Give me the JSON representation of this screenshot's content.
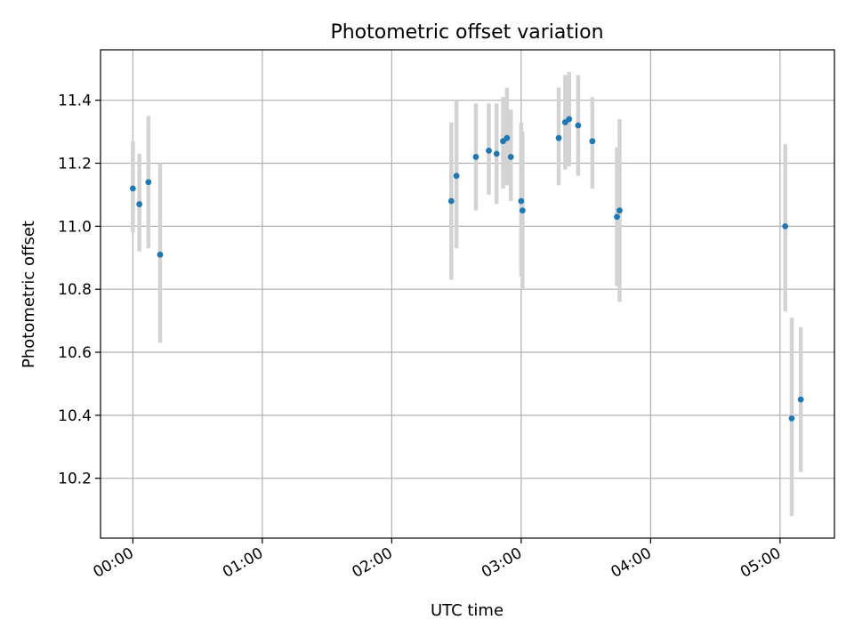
{
  "chart_data": {
    "type": "scatter",
    "title": "Photometric offset variation",
    "xlabel": "UTC time",
    "ylabel": "Photometric offset",
    "x_unit": "hours",
    "xlim": [
      -0.25,
      5.42
    ],
    "ylim": [
      10.01,
      11.56
    ],
    "x_ticks": [
      {
        "value": 0,
        "label": "00:00"
      },
      {
        "value": 1,
        "label": "01:00"
      },
      {
        "value": 2,
        "label": "02:00"
      },
      {
        "value": 3,
        "label": "03:00"
      },
      {
        "value": 4,
        "label": "04:00"
      },
      {
        "value": 5,
        "label": "05:00"
      }
    ],
    "y_ticks": [
      {
        "value": 10.2,
        "label": "10.2"
      },
      {
        "value": 10.4,
        "label": "10.4"
      },
      {
        "value": 10.6,
        "label": "10.6"
      },
      {
        "value": 10.8,
        "label": "10.8"
      },
      {
        "value": 11.0,
        "label": "11.0"
      },
      {
        "value": 11.2,
        "label": "11.2"
      },
      {
        "value": 11.4,
        "label": "11.4"
      }
    ],
    "grid": true,
    "marker_color": "#1f77b4",
    "errorbar_color": "#d3d3d3",
    "points": [
      {
        "x": 0.0,
        "y": 11.12,
        "ylo": 10.98,
        "yhi": 11.27
      },
      {
        "x": 0.05,
        "y": 11.07,
        "ylo": 10.92,
        "yhi": 11.23
      },
      {
        "x": 0.12,
        "y": 11.14,
        "ylo": 10.93,
        "yhi": 11.35
      },
      {
        "x": 0.21,
        "y": 10.91,
        "ylo": 10.63,
        "yhi": 11.2
      },
      {
        "x": 2.46,
        "y": 11.08,
        "ylo": 10.83,
        "yhi": 11.33
      },
      {
        "x": 2.5,
        "y": 11.16,
        "ylo": 10.93,
        "yhi": 11.4
      },
      {
        "x": 2.65,
        "y": 11.22,
        "ylo": 11.05,
        "yhi": 11.39
      },
      {
        "x": 2.75,
        "y": 11.24,
        "ylo": 11.1,
        "yhi": 11.39
      },
      {
        "x": 2.81,
        "y": 11.23,
        "ylo": 11.07,
        "yhi": 11.39
      },
      {
        "x": 2.86,
        "y": 11.27,
        "ylo": 11.12,
        "yhi": 11.41
      },
      {
        "x": 2.89,
        "y": 11.28,
        "ylo": 11.13,
        "yhi": 11.44
      },
      {
        "x": 2.92,
        "y": 11.22,
        "ylo": 11.08,
        "yhi": 11.37
      },
      {
        "x": 3.0,
        "y": 11.08,
        "ylo": 10.84,
        "yhi": 11.33
      },
      {
        "x": 3.01,
        "y": 11.05,
        "ylo": 10.8,
        "yhi": 11.3
      },
      {
        "x": 3.29,
        "y": 11.28,
        "ylo": 11.13,
        "yhi": 11.44
      },
      {
        "x": 3.34,
        "y": 11.33,
        "ylo": 11.18,
        "yhi": 11.48
      },
      {
        "x": 3.37,
        "y": 11.34,
        "ylo": 11.19,
        "yhi": 11.49
      },
      {
        "x": 3.44,
        "y": 11.32,
        "ylo": 11.16,
        "yhi": 11.48
      },
      {
        "x": 3.55,
        "y": 11.27,
        "ylo": 11.12,
        "yhi": 11.41
      },
      {
        "x": 3.74,
        "y": 11.03,
        "ylo": 10.81,
        "yhi": 11.25
      },
      {
        "x": 3.76,
        "y": 11.05,
        "ylo": 10.76,
        "yhi": 11.34
      },
      {
        "x": 5.04,
        "y": 11.0,
        "ylo": 10.73,
        "yhi": 11.26
      },
      {
        "x": 5.09,
        "y": 10.39,
        "ylo": 10.08,
        "yhi": 10.71
      },
      {
        "x": 5.16,
        "y": 10.45,
        "ylo": 10.22,
        "yhi": 10.68
      }
    ]
  }
}
